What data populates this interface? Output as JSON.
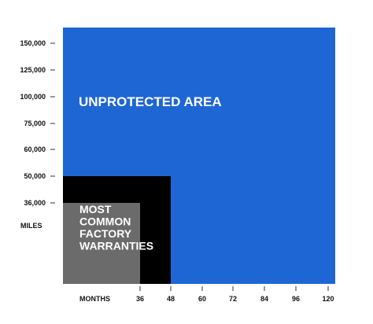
{
  "chart_data": {
    "type": "area",
    "title": "",
    "xlabel": "MONTHS",
    "ylabel": "MILES",
    "x_ticks": [
      "36",
      "48",
      "60",
      "72",
      "84",
      "96",
      "120"
    ],
    "y_ticks": [
      "150,000",
      "125,000",
      "100,000",
      "75,000",
      "60,000",
      "50,000",
      "36,000"
    ],
    "regions": [
      {
        "label": "UNPROTECTED AREA",
        "months": 120,
        "miles": 150000,
        "color": "#1e66d4"
      },
      {
        "label": "",
        "months": 48,
        "miles": 50000,
        "color": "#000000"
      },
      {
        "label": "MOST COMMON FACTORY WARRANTIES",
        "label_lines": [
          "MOST",
          "COMMON",
          "FACTORY",
          "WARRANTIES"
        ],
        "months": 36,
        "miles": 36000,
        "color": "#6b6b6b"
      }
    ]
  }
}
